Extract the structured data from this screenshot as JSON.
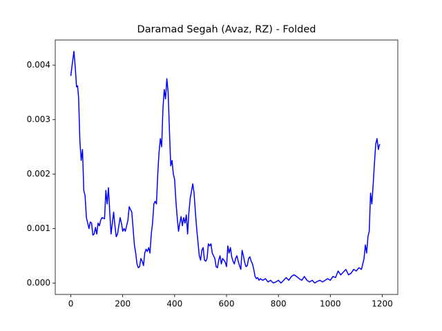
{
  "chart_data": {
    "type": "line",
    "title": "Daramad Segah (Avaz, RZ) - Folded",
    "x": [
      0,
      5,
      12,
      18,
      22,
      26,
      30,
      35,
      40,
      45,
      50,
      55,
      60,
      65,
      70,
      75,
      80,
      85,
      90,
      95,
      100,
      105,
      110,
      115,
      120,
      130,
      135,
      140,
      145,
      150,
      155,
      160,
      165,
      170,
      175,
      180,
      190,
      195,
      200,
      205,
      210,
      215,
      220,
      225,
      235,
      240,
      245,
      250,
      255,
      260,
      265,
      270,
      275,
      280,
      285,
      290,
      295,
      300,
      305,
      310,
      315,
      320,
      325,
      330,
      335,
      340,
      345,
      350,
      355,
      360,
      365,
      370,
      375,
      380,
      385,
      390,
      395,
      400,
      405,
      410,
      415,
      420,
      425,
      430,
      435,
      440,
      445,
      450,
      455,
      460,
      470,
      475,
      480,
      485,
      490,
      495,
      500,
      505,
      510,
      515,
      520,
      525,
      530,
      535,
      540,
      545,
      550,
      555,
      560,
      565,
      570,
      575,
      580,
      585,
      590,
      595,
      600,
      605,
      610,
      615,
      620,
      625,
      630,
      635,
      640,
      645,
      650,
      655,
      660,
      665,
      670,
      675,
      680,
      685,
      690,
      695,
      700,
      705,
      710,
      715,
      720,
      725,
      730,
      740,
      750,
      760,
      770,
      780,
      790,
      800,
      810,
      820,
      830,
      840,
      850,
      860,
      870,
      880,
      890,
      900,
      910,
      920,
      930,
      940,
      950,
      960,
      970,
      980,
      990,
      1000,
      1010,
      1020,
      1030,
      1040,
      1050,
      1060,
      1070,
      1080,
      1090,
      1100,
      1110,
      1120,
      1130,
      1135,
      1140,
      1145,
      1150,
      1155,
      1160,
      1165,
      1170,
      1175,
      1180,
      1185,
      1190
    ],
    "series": [
      {
        "color": "#0000ff",
        "values": [
          0.0038,
          0.004,
          0.00425,
          0.0039,
          0.0036,
          0.00362,
          0.0034,
          0.0026,
          0.00225,
          0.00245,
          0.0017,
          0.0016,
          0.0012,
          0.0011,
          0.001,
          0.00112,
          0.0011,
          0.00088,
          0.0009,
          0.00102,
          0.0009,
          0.0011,
          0.00105,
          0.00115,
          0.0012,
          0.00118,
          0.0017,
          0.00145,
          0.00175,
          0.0013,
          0.0009,
          0.0011,
          0.0013,
          0.00105,
          0.00085,
          0.0009,
          0.0012,
          0.0011,
          0.00095,
          0.001,
          0.00095,
          0.00105,
          0.00115,
          0.0014,
          0.0013,
          0.001,
          0.0007,
          0.00055,
          0.00035,
          0.00028,
          0.0003,
          0.00045,
          0.0004,
          0.00032,
          0.00055,
          0.00062,
          0.00058,
          0.00065,
          0.00055,
          0.0009,
          0.0011,
          0.00145,
          0.0015,
          0.00145,
          0.002,
          0.0024,
          0.00265,
          0.0025,
          0.0032,
          0.00355,
          0.00338,
          0.00375,
          0.0035,
          0.0028,
          0.00215,
          0.00225,
          0.002,
          0.0019,
          0.0015,
          0.0012,
          0.00095,
          0.0011,
          0.00122,
          0.00105,
          0.0012,
          0.0011,
          0.00125,
          0.0009,
          0.0013,
          0.00155,
          0.00182,
          0.00165,
          0.0013,
          0.001,
          0.00075,
          0.0005,
          0.00042,
          0.0006,
          0.00065,
          0.00042,
          0.0004,
          0.00045,
          0.00072,
          0.00068,
          0.00072,
          0.00055,
          0.0005,
          0.00045,
          0.0003,
          0.00028,
          0.00042,
          0.0005,
          0.00035,
          0.00045,
          0.00042,
          0.00038,
          0.0003,
          0.00068,
          0.00055,
          0.00065,
          0.00048,
          0.0004,
          0.00035,
          0.00045,
          0.0005,
          0.0004,
          0.00032,
          0.00025,
          0.0006,
          0.0005,
          0.00038,
          0.0003,
          0.00032,
          0.00045,
          0.00048,
          0.0004,
          0.00035,
          0.00025,
          0.00012,
          8e-05,
          0.0001,
          5e-05,
          8e-05,
          5e-05,
          8e-05,
          2e-05,
          5e-05,
          0,
          2e-05,
          5e-05,
          0,
          5e-05,
          0.0001,
          5e-05,
          0.00012,
          0.00015,
          0.00012,
          8e-05,
          5e-05,
          0.00012,
          5e-05,
          2e-05,
          5e-05,
          0,
          3e-05,
          5e-05,
          2e-05,
          5e-05,
          8e-05,
          5e-05,
          0.00012,
          0.0001,
          0.00022,
          0.00015,
          0.0002,
          0.00025,
          0.00015,
          0.00018,
          0.00025,
          0.00022,
          0.00028,
          0.00025,
          0.00045,
          0.0007,
          0.00055,
          0.00085,
          0.00095,
          0.00165,
          0.00145,
          0.0018,
          0.0022,
          0.00255,
          0.00265,
          0.00245,
          0.00255
        ]
      }
    ],
    "xlim": [
      -60,
      1260
    ],
    "ylim": [
      -0.00021,
      0.00446
    ],
    "xticks": [
      0,
      200,
      400,
      600,
      800,
      1000,
      1200
    ],
    "yticks": [
      {
        "value": 0,
        "label": "0.000"
      },
      0.001,
      0.002,
      0.003,
      0.004
    ]
  }
}
